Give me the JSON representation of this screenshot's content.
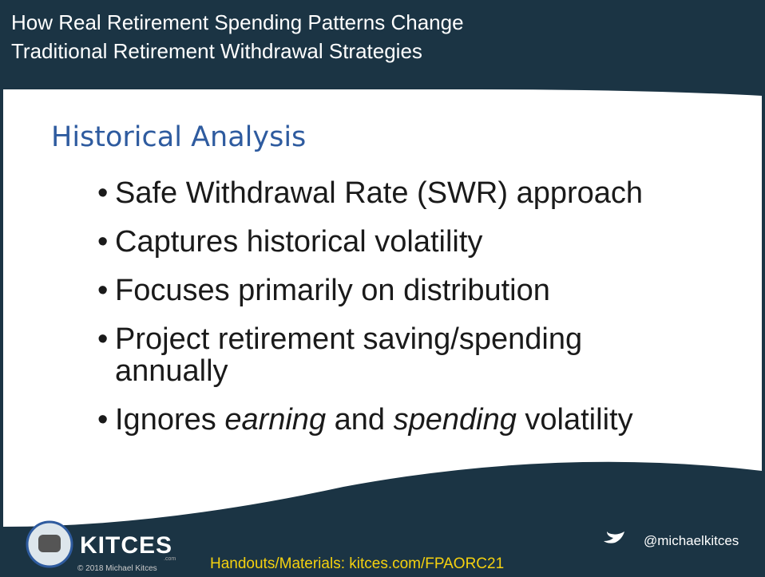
{
  "header": {
    "title_lines": [
      "How Real Retirement Spending Patterns Change",
      "Traditional Retirement Withdrawal Strategies"
    ]
  },
  "slide": {
    "heading": "Historical Analysis",
    "bullets": [
      [
        {
          "text": "Safe Withdrawal Rate (SWR) approach"
        }
      ],
      [
        {
          "text": "Captures historical volatility"
        }
      ],
      [
        {
          "text": "Focuses primarily on distribution"
        }
      ],
      [
        {
          "text": "Project retirement saving/spending annually"
        }
      ],
      [
        {
          "text": "Ignores "
        },
        {
          "text": "earning",
          "italic": true
        },
        {
          "text": " and "
        },
        {
          "text": "spending",
          "italic": true
        },
        {
          "text": " volatility"
        }
      ]
    ]
  },
  "footer": {
    "brand": "KITCES",
    "brand_suffix": ".com",
    "copyright": "© 2018 Michael Kitces",
    "link": "Handouts/Materials: kitces.com/FPAORC21",
    "twitter": "@michaelkitces"
  }
}
